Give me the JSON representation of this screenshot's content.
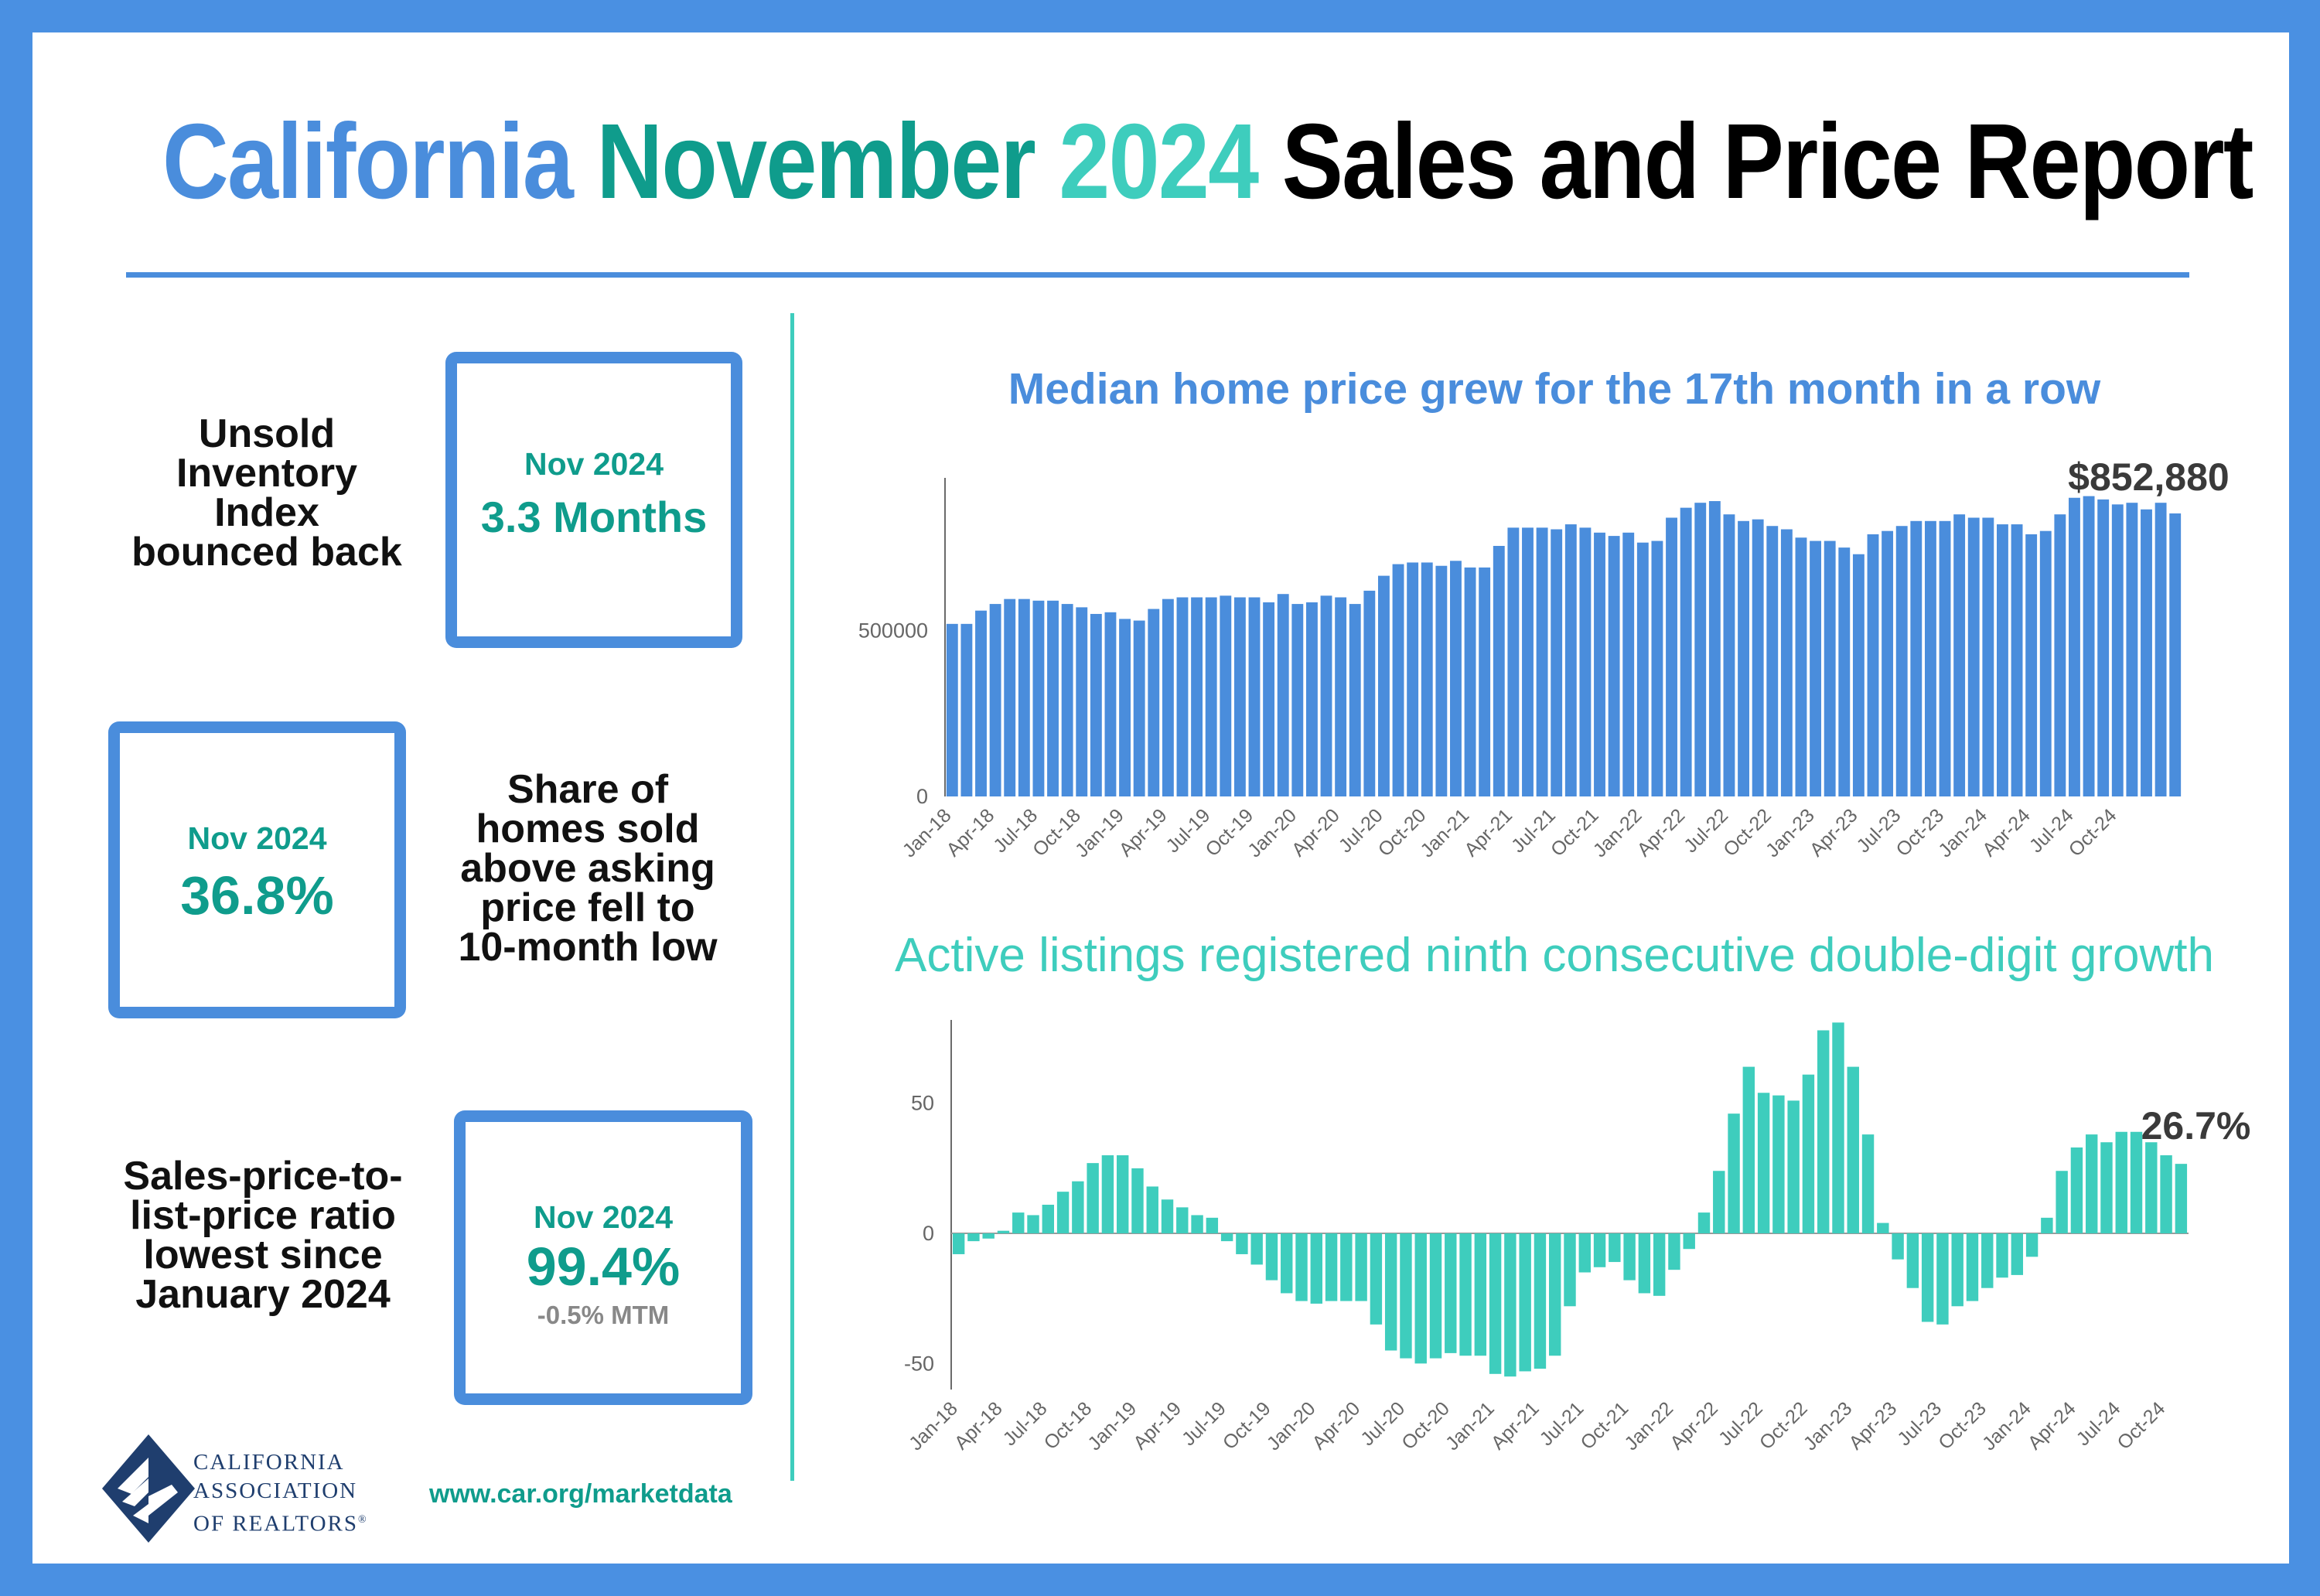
{
  "header": {
    "title_part1": "California",
    "title_part2": "November",
    "title_part3": "2024",
    "title_part4": "Sales and Price Report"
  },
  "colors": {
    "frame": "#4a90e2",
    "blue": "#4a8ddc",
    "teal": "#0f9c8c",
    "light_teal": "#3ecdbd",
    "price_bar": "#4a8ddc",
    "listing_bar": "#3ecdbd"
  },
  "kpis": [
    {
      "label_lines": [
        "Unsold",
        "Inventory",
        "Index",
        "bounced back"
      ],
      "period": "Nov 2024",
      "value": "3.3 Months",
      "change": ""
    },
    {
      "label_lines": [
        "Share of",
        "homes sold",
        "above asking",
        "price fell to",
        "10-month low"
      ],
      "period": "Nov 2024",
      "value": "36.8%",
      "change": ""
    },
    {
      "label_lines": [
        "Sales-price-to-",
        "list-price ratio",
        "lowest since",
        "January 2024"
      ],
      "period": "Nov 2024",
      "value": "99.4%",
      "change": "-0.5% MTM"
    }
  ],
  "footer": {
    "org_line1": "CALIFORNIA",
    "org_line2": "ASSOCIATION",
    "org_line3": "OF REALTORS",
    "org_mark": "®",
    "logo_icon": "car-logo-icon",
    "url": "www.car.org/marketdata"
  },
  "chart_data": [
    {
      "type": "bar",
      "title": "Median home price grew for the 17th month in a row",
      "callout": "$852,880",
      "x_labels": [
        "Jan-18",
        "Apr-18",
        "Jul-18",
        "Oct-18",
        "Jan-19",
        "Apr-19",
        "Jul-19",
        "Oct-19",
        "Jan-20",
        "Apr-20",
        "Jul-20",
        "Oct-20",
        "Jan-21",
        "Apr-21",
        "Jul-21",
        "Oct-21",
        "Jan-22",
        "Apr-22",
        "Jul-22",
        "Oct-22",
        "Jan-23",
        "Apr-23",
        "Jul-23",
        "Oct-23",
        "Jan-24",
        "Apr-24",
        "Jul-24",
        "Oct-24"
      ],
      "y_ticks": [
        0,
        500000
      ],
      "y_tick_labels": [
        "0",
        "500000"
      ],
      "ylim": [
        0,
        960000
      ],
      "grid": false,
      "values": [
        520000,
        520000,
        560000,
        580000,
        595000,
        595000,
        590000,
        590000,
        580000,
        570000,
        550000,
        555000,
        535000,
        530000,
        565000,
        595000,
        600000,
        600000,
        600000,
        605000,
        600000,
        600000,
        585000,
        610000,
        580000,
        585000,
        605000,
        600000,
        580000,
        620000,
        665000,
        700000,
        705000,
        705000,
        695000,
        710000,
        690000,
        690000,
        755000,
        810000,
        810000,
        810000,
        805000,
        820000,
        810000,
        795000,
        785000,
        795000,
        765000,
        770000,
        840000,
        870000,
        885000,
        890000,
        850000,
        830000,
        835000,
        815000,
        805000,
        780000,
        770000,
        770000,
        750000,
        730000,
        790000,
        800000,
        815000,
        830000,
        830000,
        830000,
        850000,
        840000,
        840000,
        820000,
        820000,
        790000,
        800000,
        850000,
        900000,
        905000,
        895000,
        880000,
        885000,
        865000,
        885000,
        852880
      ]
    },
    {
      "type": "bar",
      "title": "Active listings registered ninth consecutive double-digit growth",
      "callout": "26.7%",
      "x_labels": [
        "Jan-18",
        "Apr-18",
        "Jul-18",
        "Oct-18",
        "Jan-19",
        "Apr-19",
        "Jul-19",
        "Oct-19",
        "Jan-20",
        "Apr-20",
        "Jul-20",
        "Oct-20",
        "Jan-21",
        "Apr-21",
        "Jul-21",
        "Oct-21",
        "Jan-22",
        "Apr-22",
        "Jul-22",
        "Oct-22",
        "Jan-23",
        "Apr-23",
        "Jul-23",
        "Oct-23",
        "Jan-24",
        "Apr-24",
        "Jul-24",
        "Oct-24"
      ],
      "y_ticks": [
        -50,
        0,
        50
      ],
      "y_tick_labels": [
        "-50",
        "0",
        "50"
      ],
      "ylim": [
        -60,
        82
      ],
      "grid": false,
      "values": [
        -8,
        -3,
        -2,
        1,
        8,
        7,
        11,
        16,
        20,
        27,
        30,
        30,
        25,
        18,
        13,
        10,
        7,
        6,
        -3,
        -8,
        -12,
        -18,
        -23,
        -26,
        -27,
        -26,
        -26,
        -26,
        -35,
        -45,
        -48,
        -50,
        -48,
        -46,
        -47,
        -47,
        -54,
        -55,
        -53,
        -52,
        -47,
        -28,
        -15,
        -13,
        -11,
        -18,
        -23,
        -24,
        -14,
        -6,
        8,
        24,
        46,
        64,
        54,
        53,
        51,
        61,
        78,
        81,
        64,
        38,
        4,
        -10,
        -21,
        -34,
        -35,
        -28,
        -26,
        -21,
        -17,
        -16,
        -9,
        6,
        24,
        33,
        38,
        35,
        39,
        39,
        35,
        30,
        26.7
      ]
    }
  ]
}
